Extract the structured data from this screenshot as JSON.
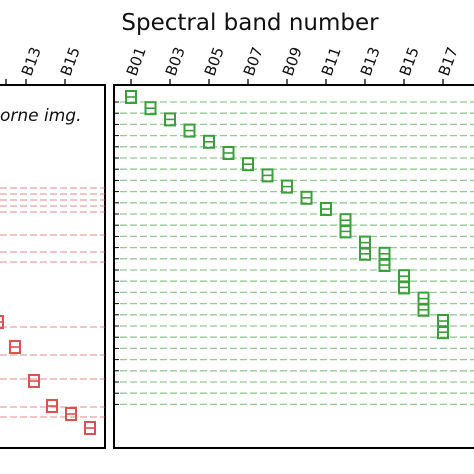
{
  "chart_data": [
    {
      "type": "scatter",
      "panel": "left",
      "title": "",
      "panel_note": "orne img.",
      "xlabel": "",
      "ylabel": "",
      "x_ticks_visible": [
        "B13",
        "B15"
      ],
      "color": "#e05050",
      "x_tick_start_index": 13,
      "dashed_rows_count": 12,
      "points": [
        {
          "band": "B12",
          "row": 6
        },
        {
          "band": "B13",
          "row": 7
        },
        {
          "band": "B14",
          "row": 8
        },
        {
          "band": "B15",
          "row": 9
        },
        {
          "band": "B16",
          "row": 10
        },
        {
          "band": "B17",
          "row": 11
        }
      ]
    },
    {
      "type": "scatter",
      "panel": "right",
      "title": "Spectral band number",
      "xlabel": "Spectral band number",
      "ylabel": "",
      "x_ticks": [
        "B01",
        "B03",
        "B05",
        "B07",
        "B09",
        "B11",
        "B13",
        "B15",
        "B17",
        "B19"
      ],
      "color": "#3aa03a",
      "dashed_rows_count": 28,
      "points": [
        {
          "band": "B01",
          "row": 1
        },
        {
          "band": "B02",
          "row": 2
        },
        {
          "band": "B03",
          "row": 3
        },
        {
          "band": "B04",
          "row": 4
        },
        {
          "band": "B05",
          "row": 5
        },
        {
          "band": "B06",
          "row": 6
        },
        {
          "band": "B07",
          "row": 7
        },
        {
          "band": "B08",
          "row": 8
        },
        {
          "band": "B09",
          "row": 9
        },
        {
          "band": "B10",
          "row": 10
        },
        {
          "band": "B11",
          "row": 11
        },
        {
          "band": "B12",
          "row": 12
        },
        {
          "band": "B12",
          "row": 13
        },
        {
          "band": "B13",
          "row": 14
        },
        {
          "band": "B13",
          "row": 15
        },
        {
          "band": "B14",
          "row": 15
        },
        {
          "band": "B14",
          "row": 16
        },
        {
          "band": "B15",
          "row": 17
        },
        {
          "band": "B15",
          "row": 18
        },
        {
          "band": "B16",
          "row": 19
        },
        {
          "band": "B16",
          "row": 20
        },
        {
          "band": "B17",
          "row": 21
        },
        {
          "band": "B17",
          "row": 22
        }
      ]
    }
  ]
}
